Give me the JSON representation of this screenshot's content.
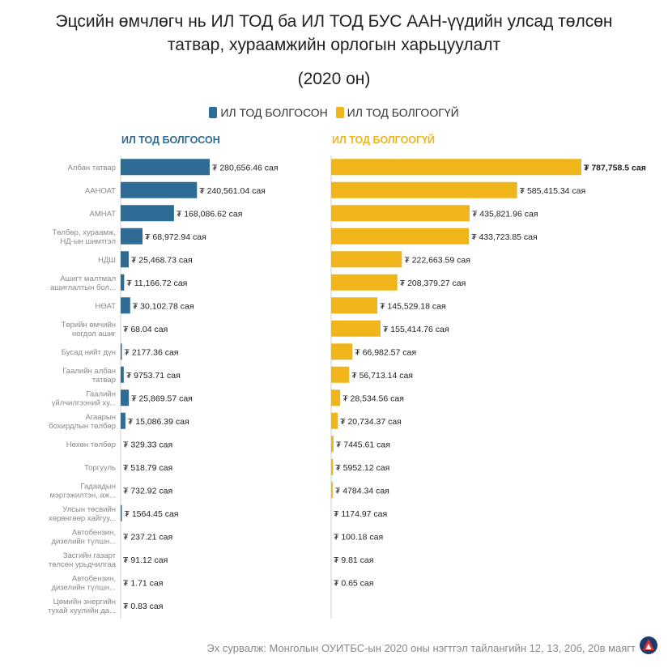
{
  "title_line1": "Эцсийн өмчлөгч нь ИЛ ТОД ба ИЛ ТОД БУС ААН-үүдийн улсад төлсөн",
  "title_line2": "татвар, хураамжийн орлогын харьцуулалт",
  "subtitle": "(2020 он)",
  "source": "Эх сурвалж: Монголын ОУИТБС-ын 2020 оны нэгтгэл тайлангийн 12, 13, 20б, 20в маягт",
  "colors": {
    "blue": "#2e6b95",
    "yellow": "#f1b51c",
    "axis": "#cccccc"
  },
  "legend": [
    {
      "label": "ИЛ ТОД БОЛГОСОН",
      "color": "#2e6b95"
    },
    {
      "label": "ИЛ ТОД БОЛГООГҮЙ",
      "color": "#f1b51c"
    }
  ],
  "chart_data": {
    "type": "bar",
    "orientation": "horizontal",
    "categories": [
      [
        "Албан татвар"
      ],
      [
        "ААНОАТ"
      ],
      [
        "АМНАТ"
      ],
      [
        "Төлбөр, хураамж,",
        "НД-ын шимтгэл"
      ],
      [
        "НДШ"
      ],
      [
        "Ашигт малтмал",
        "ашиглалтын бол..."
      ],
      [
        "НӨАТ"
      ],
      [
        "Төрийн өмчийн",
        "ногдол ашиг"
      ],
      [
        "Бусад нийт дүн"
      ],
      [
        "Гаалийн албан",
        "татвар"
      ],
      [
        "Гаалийн",
        "үйлчилгээний ху..."
      ],
      [
        "Агаарын",
        "бохирдлын төлбөр"
      ],
      [
        "Нөхөн төлбөр"
      ],
      [
        "Торгууль"
      ],
      [
        "Гадаадын",
        "мэргэжилтэн, аж..."
      ],
      [
        "Улсын төсвийн",
        "хөрөнгөөр хайгуу..."
      ],
      [
        "Автобензин,",
        "дизелийн түлшн..."
      ],
      [
        "Засгийн газарт",
        "төлсөн урьдчилгаа"
      ],
      [
        "Автобензин,",
        "дизелийн түлшн..."
      ],
      [
        "Цөмийн энергийн",
        "тухай хуулийн да..."
      ]
    ],
    "series": [
      {
        "name": "ИЛ ТОД БОЛГОСОН",
        "color": "#2e6b95",
        "values": [
          280656.46,
          240561.04,
          168086.62,
          68972.94,
          25468.73,
          11166.72,
          30102.78,
          68.04,
          2177.36,
          9753.71,
          25869.57,
          15086.39,
          329.33,
          518.79,
          732.92,
          1564.45,
          237.21,
          91.12,
          1.71,
          0.83
        ],
        "labels": [
          "₮ 280,656.46 сая",
          "₮ 240,561.04 сая",
          "₮ 168,086.62 сая",
          "₮ 68,972.94 сая",
          "₮ 25,468.73 сая",
          "₮ 11,166.72 сая",
          "₮ 30,102.78 сая",
          "₮ 68.04 сая",
          "₮ 2177.36 сая",
          "₮ 9753.71 сая",
          "₮ 25,869.57 сая",
          "₮ 15,086.39 сая",
          "₮ 329.33 сая",
          "₮ 518.79 сая",
          "₮ 732.92 сая",
          "₮ 1564.45 сая",
          "₮ 237.21 сая",
          "₮ 91.12 сая",
          "₮ 1.71 сая",
          "₮ 0.83 сая"
        ]
      },
      {
        "name": "ИЛ ТОД БОЛГООГҮЙ",
        "color": "#f1b51c",
        "values": [
          787758.5,
          585415.34,
          435821.96,
          433723.85,
          222663.59,
          208379.27,
          145529.18,
          155414.76,
          66982.57,
          56713.14,
          28534.56,
          20734.37,
          7445.61,
          5952.12,
          4784.34,
          1174.97,
          100.18,
          9.81,
          0.65,
          null
        ],
        "labels": [
          "₮ 787,758.5 сая",
          "₮ 585,415.34 сая",
          "₮ 435,821.96 сая",
          "₮ 433,723.85 сая",
          "₮ 222,663.59 сая",
          "₮ 208,379.27 сая",
          "₮ 145,529.18 сая",
          "₮ 155,414.76 сая",
          "₮ 66,982.57 сая",
          "₮ 56,713.14 сая",
          "₮ 28,534.56 сая",
          "₮ 20,734.37 сая",
          "₮ 7445.61 сая",
          "₮ 5952.12 сая",
          "₮ 4784.34 сая",
          "₮ 1174.97 сая",
          "₮ 100.18 сая",
          "₮ 9.81 сая",
          "₮ 0.65 сая",
          ""
        ]
      }
    ],
    "panel_titles": [
      "ИЛ ТОД БОЛГОСОН",
      "ИЛ ТОД БОЛГООГҮЙ"
    ],
    "unit": "сая ₮",
    "bold_max_label": true
  }
}
